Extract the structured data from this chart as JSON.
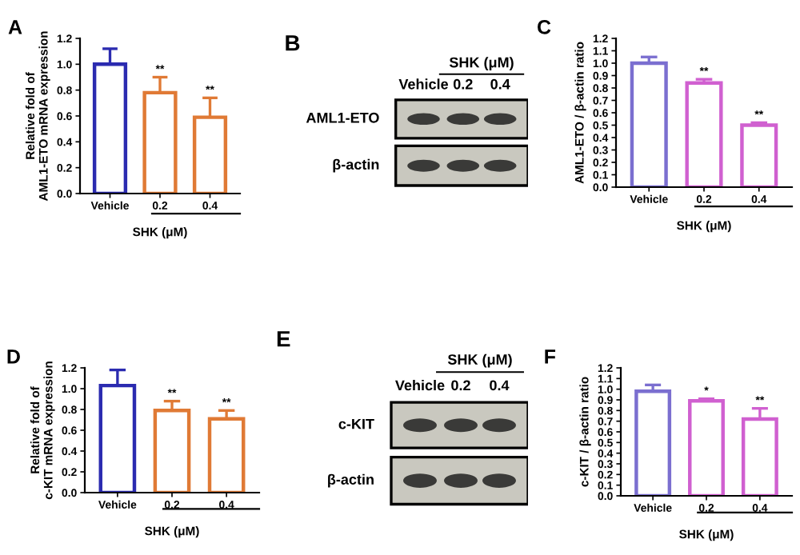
{
  "chart_data": [
    {
      "type": "bar",
      "title": "A",
      "ylabel": "Relative fold of\nAML1-ETO mRNA expression",
      "xlabel": "SHK (μM)",
      "categories": [
        "Vehicle",
        "0.2",
        "0.4"
      ],
      "values": [
        1.0,
        0.78,
        0.59
      ],
      "errors": [
        [
          1.0,
          1.12
        ],
        [
          0.78,
          0.9
        ],
        [
          0.59,
          0.74
        ]
      ],
      "colors": [
        "#2b2bb0",
        "#e07a35",
        "#e07a35"
      ],
      "ylim": [
        0,
        1.2
      ],
      "yticks": [
        {
          "value": 0,
          "label": "0.0"
        },
        {
          "value": 0.2,
          "label": "0.2"
        },
        {
          "value": 0.4,
          "label": "0.4"
        },
        {
          "value": 0.6,
          "label": "0.6"
        },
        {
          "value": 0.8,
          "label": "0.8"
        },
        {
          "value": 1.0,
          "label": "1.0"
        },
        {
          "value": 1.2,
          "label": "1.2"
        }
      ],
      "annotations": [
        {
          "text": "**",
          "x": "0.2",
          "y": 0.9
        },
        {
          "text": "**",
          "x": "0.4",
          "y": 0.74
        }
      ]
    },
    {
      "type": "other",
      "title": "B",
      "annotations": [
        "SHK (μM)",
        "Vehicle",
        "0.2",
        "0.4",
        "AML1-ETO",
        "β-actin"
      ]
    },
    {
      "type": "bar",
      "title": "C",
      "ylabel": "AML1-ETO / β-actin ratio",
      "xlabel": "SHK (μM)",
      "categories": [
        "Vehicle",
        "0.2",
        "0.4"
      ],
      "values": [
        1.0,
        0.84,
        0.5
      ],
      "errors": [
        [
          1.0,
          1.05
        ],
        [
          0.84,
          0.87
        ],
        [
          0.5,
          0.52
        ]
      ],
      "colors": [
        "#7b6fd0",
        "#d060d0",
        "#d060d0"
      ],
      "ylim": [
        0,
        1.2
      ],
      "yticks": [
        {
          "value": 0,
          "label": "0.0"
        },
        {
          "value": 0.1,
          "label": "0.1"
        },
        {
          "value": 0.2,
          "label": "0.2"
        },
        {
          "value": 0.3,
          "label": "0.3"
        },
        {
          "value": 0.4,
          "label": "0.4"
        },
        {
          "value": 0.5,
          "label": "0.5"
        },
        {
          "value": 0.6,
          "label": "0.6"
        },
        {
          "value": 0.7,
          "label": "0.7"
        },
        {
          "value": 0.8,
          "label": "0.8"
        },
        {
          "value": 0.9,
          "label": "0.9"
        },
        {
          "value": 1.0,
          "label": "1.0"
        },
        {
          "value": 1.1,
          "label": "1.1"
        },
        {
          "value": 1.2,
          "label": "1.2"
        }
      ],
      "annotations": [
        {
          "text": "**",
          "x": "0.2",
          "y": 0.87
        },
        {
          "text": "**",
          "x": "0.4",
          "y": 0.52
        }
      ]
    },
    {
      "type": "bar",
      "title": "D",
      "ylabel": "Relative fold of\nc-KIT mRNA expression",
      "xlabel": "SHK (μM)",
      "categories": [
        "Vehicle",
        "0.2",
        "0.4"
      ],
      "values": [
        1.03,
        0.79,
        0.71
      ],
      "errors": [
        [
          1.03,
          1.18
        ],
        [
          0.79,
          0.88
        ],
        [
          0.71,
          0.79
        ]
      ],
      "colors": [
        "#2b2bb0",
        "#e07a35",
        "#e07a35"
      ],
      "ylim": [
        0,
        1.2
      ],
      "yticks": [
        {
          "value": 0,
          "label": "0.0"
        },
        {
          "value": 0.2,
          "label": "0.2"
        },
        {
          "value": 0.4,
          "label": "0.4"
        },
        {
          "value": 0.6,
          "label": "0.6"
        },
        {
          "value": 0.8,
          "label": "0.8"
        },
        {
          "value": 1.0,
          "label": "1.0"
        },
        {
          "value": 1.2,
          "label": "1.2"
        }
      ],
      "annotations": [
        {
          "text": "**",
          "x": "0.2",
          "y": 0.88
        },
        {
          "text": "**",
          "x": "0.4",
          "y": 0.79
        }
      ]
    },
    {
      "type": "other",
      "title": "E",
      "annotations": [
        "SHK (μM)",
        "Vehicle",
        "0.2",
        "0.4",
        "c-KIT",
        "β-actin"
      ]
    },
    {
      "type": "bar",
      "title": "F",
      "ylabel": "c-KIT / β-actin ratio",
      "xlabel": "SHK (μM)",
      "categories": [
        "Vehicle",
        "0.2",
        "0.4"
      ],
      "values": [
        0.98,
        0.89,
        0.72
      ],
      "errors": [
        [
          0.98,
          1.04
        ],
        [
          0.89,
          0.91
        ],
        [
          0.72,
          0.82
        ]
      ],
      "colors": [
        "#7b6fd0",
        "#d060d0",
        "#d060d0"
      ],
      "ylim": [
        0,
        1.2
      ],
      "yticks": [
        {
          "value": 0,
          "label": "0.0"
        },
        {
          "value": 0.1,
          "label": "0.1"
        },
        {
          "value": 0.2,
          "label": "0.2"
        },
        {
          "value": 0.3,
          "label": "0.3"
        },
        {
          "value": 0.4,
          "label": "0.4"
        },
        {
          "value": 0.5,
          "label": "0.5"
        },
        {
          "value": 0.6,
          "label": "0.6"
        },
        {
          "value": 0.7,
          "label": "0.7"
        },
        {
          "value": 0.8,
          "label": "0.8"
        },
        {
          "value": 0.9,
          "label": "0.9"
        },
        {
          "value": 1.0,
          "label": "1.0"
        },
        {
          "value": 1.1,
          "label": "1.1"
        },
        {
          "value": 1.2,
          "label": "1.2"
        }
      ],
      "annotations": [
        {
          "text": "*",
          "x": "0.2",
          "y": 0.91
        },
        {
          "text": "**",
          "x": "0.4",
          "y": 0.82
        }
      ]
    }
  ]
}
